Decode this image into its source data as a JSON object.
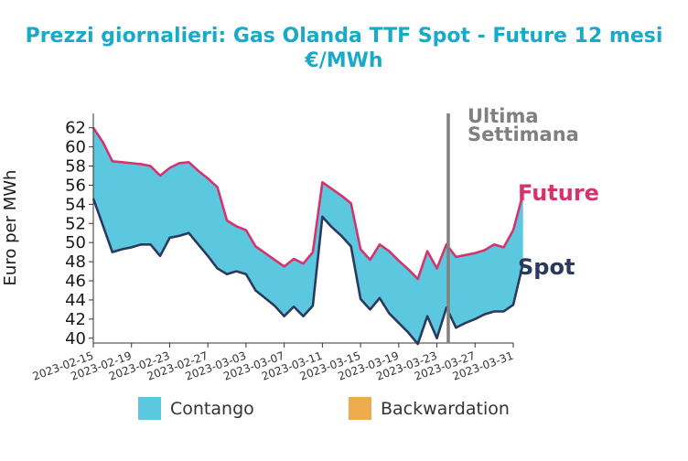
{
  "title_line1": "Prezzi giornalieri: Gas Olanda TTF Spot - Future 12 mesi",
  "title_line2": "€/MWh",
  "colors": {
    "title": "#1aa9c8",
    "future": "#d6336c",
    "spot": "#2b3a5c",
    "contango": "#5bc8df",
    "backwardation": "#eeaa4f",
    "week_line": "#808080"
  },
  "annotations": {
    "week_line1": "Ultima",
    "week_line2": "Settimana",
    "future_label": "Future",
    "spot_label": "Spot"
  },
  "legend": {
    "contango": "Contango",
    "backwardation": "Backwardation"
  },
  "chart_data": {
    "type": "area",
    "xlabel": "",
    "ylabel": "Euro per MWh",
    "ylim": [
      39.5,
      63.5
    ],
    "yticks": [
      40,
      42,
      44,
      46,
      48,
      50,
      52,
      54,
      56,
      58,
      60,
      62
    ],
    "xlim": [
      "2023-02-15",
      "2023-03-31"
    ],
    "xticks": [
      "2023-02-15",
      "2023-02-19",
      "2023-02-23",
      "2023-02-27",
      "2023-03-03",
      "2023-03-07",
      "2023-03-11",
      "2023-03-15",
      "2023-03-19",
      "2023-03-23",
      "2023-03-27",
      "2023-03-31"
    ],
    "week_marker": "2023-03-24",
    "legend_position": "bottom",
    "grid": false,
    "series": [
      {
        "name": "Future",
        "points": [
          [
            "2023-02-15",
            62.0
          ],
          [
            "2023-02-16",
            60.5
          ],
          [
            "2023-02-17",
            58.5
          ],
          [
            "2023-02-18",
            58.4
          ],
          [
            "2023-02-19",
            58.3
          ],
          [
            "2023-02-20",
            58.2
          ],
          [
            "2023-02-21",
            58.0
          ],
          [
            "2023-02-22",
            57.0
          ],
          [
            "2023-02-23",
            57.8
          ],
          [
            "2023-02-24",
            58.3
          ],
          [
            "2023-02-25",
            58.4
          ],
          [
            "2023-02-26",
            57.5
          ],
          [
            "2023-02-27",
            56.7
          ],
          [
            "2023-02-28",
            55.8
          ],
          [
            "2023-03-01",
            52.3
          ],
          [
            "2023-03-02",
            51.7
          ],
          [
            "2023-03-03",
            51.3
          ],
          [
            "2023-03-04",
            49.6
          ],
          [
            "2023-03-05",
            48.9
          ],
          [
            "2023-03-06",
            48.2
          ],
          [
            "2023-03-07",
            47.5
          ],
          [
            "2023-03-08",
            48.3
          ],
          [
            "2023-03-09",
            47.8
          ],
          [
            "2023-03-10",
            49.0
          ],
          [
            "2023-03-11",
            56.3
          ],
          [
            "2023-03-12",
            55.6
          ],
          [
            "2023-03-13",
            54.9
          ],
          [
            "2023-03-14",
            54.1
          ],
          [
            "2023-03-15",
            49.3
          ],
          [
            "2023-03-16",
            48.2
          ],
          [
            "2023-03-17",
            49.8
          ],
          [
            "2023-03-18",
            49.1
          ],
          [
            "2023-03-19",
            48.1
          ],
          [
            "2023-03-20",
            47.2
          ],
          [
            "2023-03-21",
            46.2
          ],
          [
            "2023-03-22",
            49.1
          ],
          [
            "2023-03-23",
            47.3
          ],
          [
            "2023-03-24",
            49.8
          ],
          [
            "2023-03-25",
            48.5
          ],
          [
            "2023-03-26",
            48.7
          ],
          [
            "2023-03-27",
            48.9
          ],
          [
            "2023-03-28",
            49.2
          ],
          [
            "2023-03-29",
            49.8
          ],
          [
            "2023-03-30",
            49.5
          ],
          [
            "2023-03-31",
            51.3
          ],
          [
            "2023-04-01",
            55.0
          ]
        ]
      },
      {
        "name": "Spot",
        "points": [
          [
            "2023-02-15",
            54.6
          ],
          [
            "2023-02-16",
            51.8
          ],
          [
            "2023-02-17",
            49.0
          ],
          [
            "2023-02-18",
            49.3
          ],
          [
            "2023-02-19",
            49.5
          ],
          [
            "2023-02-20",
            49.8
          ],
          [
            "2023-02-21",
            49.8
          ],
          [
            "2023-02-22",
            48.6
          ],
          [
            "2023-02-23",
            50.5
          ],
          [
            "2023-02-24",
            50.7
          ],
          [
            "2023-02-25",
            51.0
          ],
          [
            "2023-02-26",
            49.8
          ],
          [
            "2023-02-27",
            48.6
          ],
          [
            "2023-02-28",
            47.3
          ],
          [
            "2023-03-01",
            46.7
          ],
          [
            "2023-03-02",
            47.0
          ],
          [
            "2023-03-03",
            46.7
          ],
          [
            "2023-03-04",
            45.0
          ],
          [
            "2023-03-05",
            44.2
          ],
          [
            "2023-03-06",
            43.4
          ],
          [
            "2023-03-07",
            42.3
          ],
          [
            "2023-03-08",
            43.3
          ],
          [
            "2023-03-09",
            42.3
          ],
          [
            "2023-03-10",
            43.4
          ],
          [
            "2023-03-11",
            52.7
          ],
          [
            "2023-03-12",
            51.6
          ],
          [
            "2023-03-13",
            50.7
          ],
          [
            "2023-03-14",
            49.6
          ],
          [
            "2023-03-15",
            44.1
          ],
          [
            "2023-03-16",
            43.0
          ],
          [
            "2023-03-17",
            44.2
          ],
          [
            "2023-03-18",
            42.6
          ],
          [
            "2023-03-19",
            41.6
          ],
          [
            "2023-03-20",
            40.6
          ],
          [
            "2023-03-21",
            39.4
          ],
          [
            "2023-03-22",
            42.3
          ],
          [
            "2023-03-23",
            40.0
          ],
          [
            "2023-03-24",
            43.2
          ],
          [
            "2023-03-25",
            41.1
          ],
          [
            "2023-03-26",
            41.6
          ],
          [
            "2023-03-27",
            42.0
          ],
          [
            "2023-03-28",
            42.5
          ],
          [
            "2023-03-29",
            42.8
          ],
          [
            "2023-03-30",
            42.8
          ],
          [
            "2023-03-31",
            43.5
          ],
          [
            "2023-04-01",
            47.7
          ]
        ]
      }
    ]
  }
}
